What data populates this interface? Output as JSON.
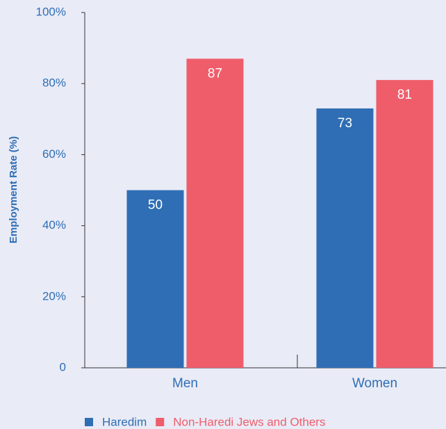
{
  "chart_data": {
    "type": "bar",
    "y_axis_label": "Employment Rate (%)",
    "categories": [
      "Men",
      "Women"
    ],
    "series": [
      {
        "name": "Haredim",
        "color": "#2f6eb5",
        "values": [
          50,
          73
        ]
      },
      {
        "name": "Non-Haredi Jews and Others",
        "color": "#ef5d6b",
        "values": [
          87,
          81
        ]
      }
    ],
    "ylim": [
      0,
      100
    ],
    "yticks": [
      0,
      {
        "value": 20,
        "label": "20%"
      },
      {
        "value": 40,
        "label": "40%"
      },
      {
        "value": 60,
        "label": "60%"
      },
      {
        "value": 80,
        "label": "80%"
      },
      {
        "value": 100,
        "label": "100%"
      }
    ]
  }
}
